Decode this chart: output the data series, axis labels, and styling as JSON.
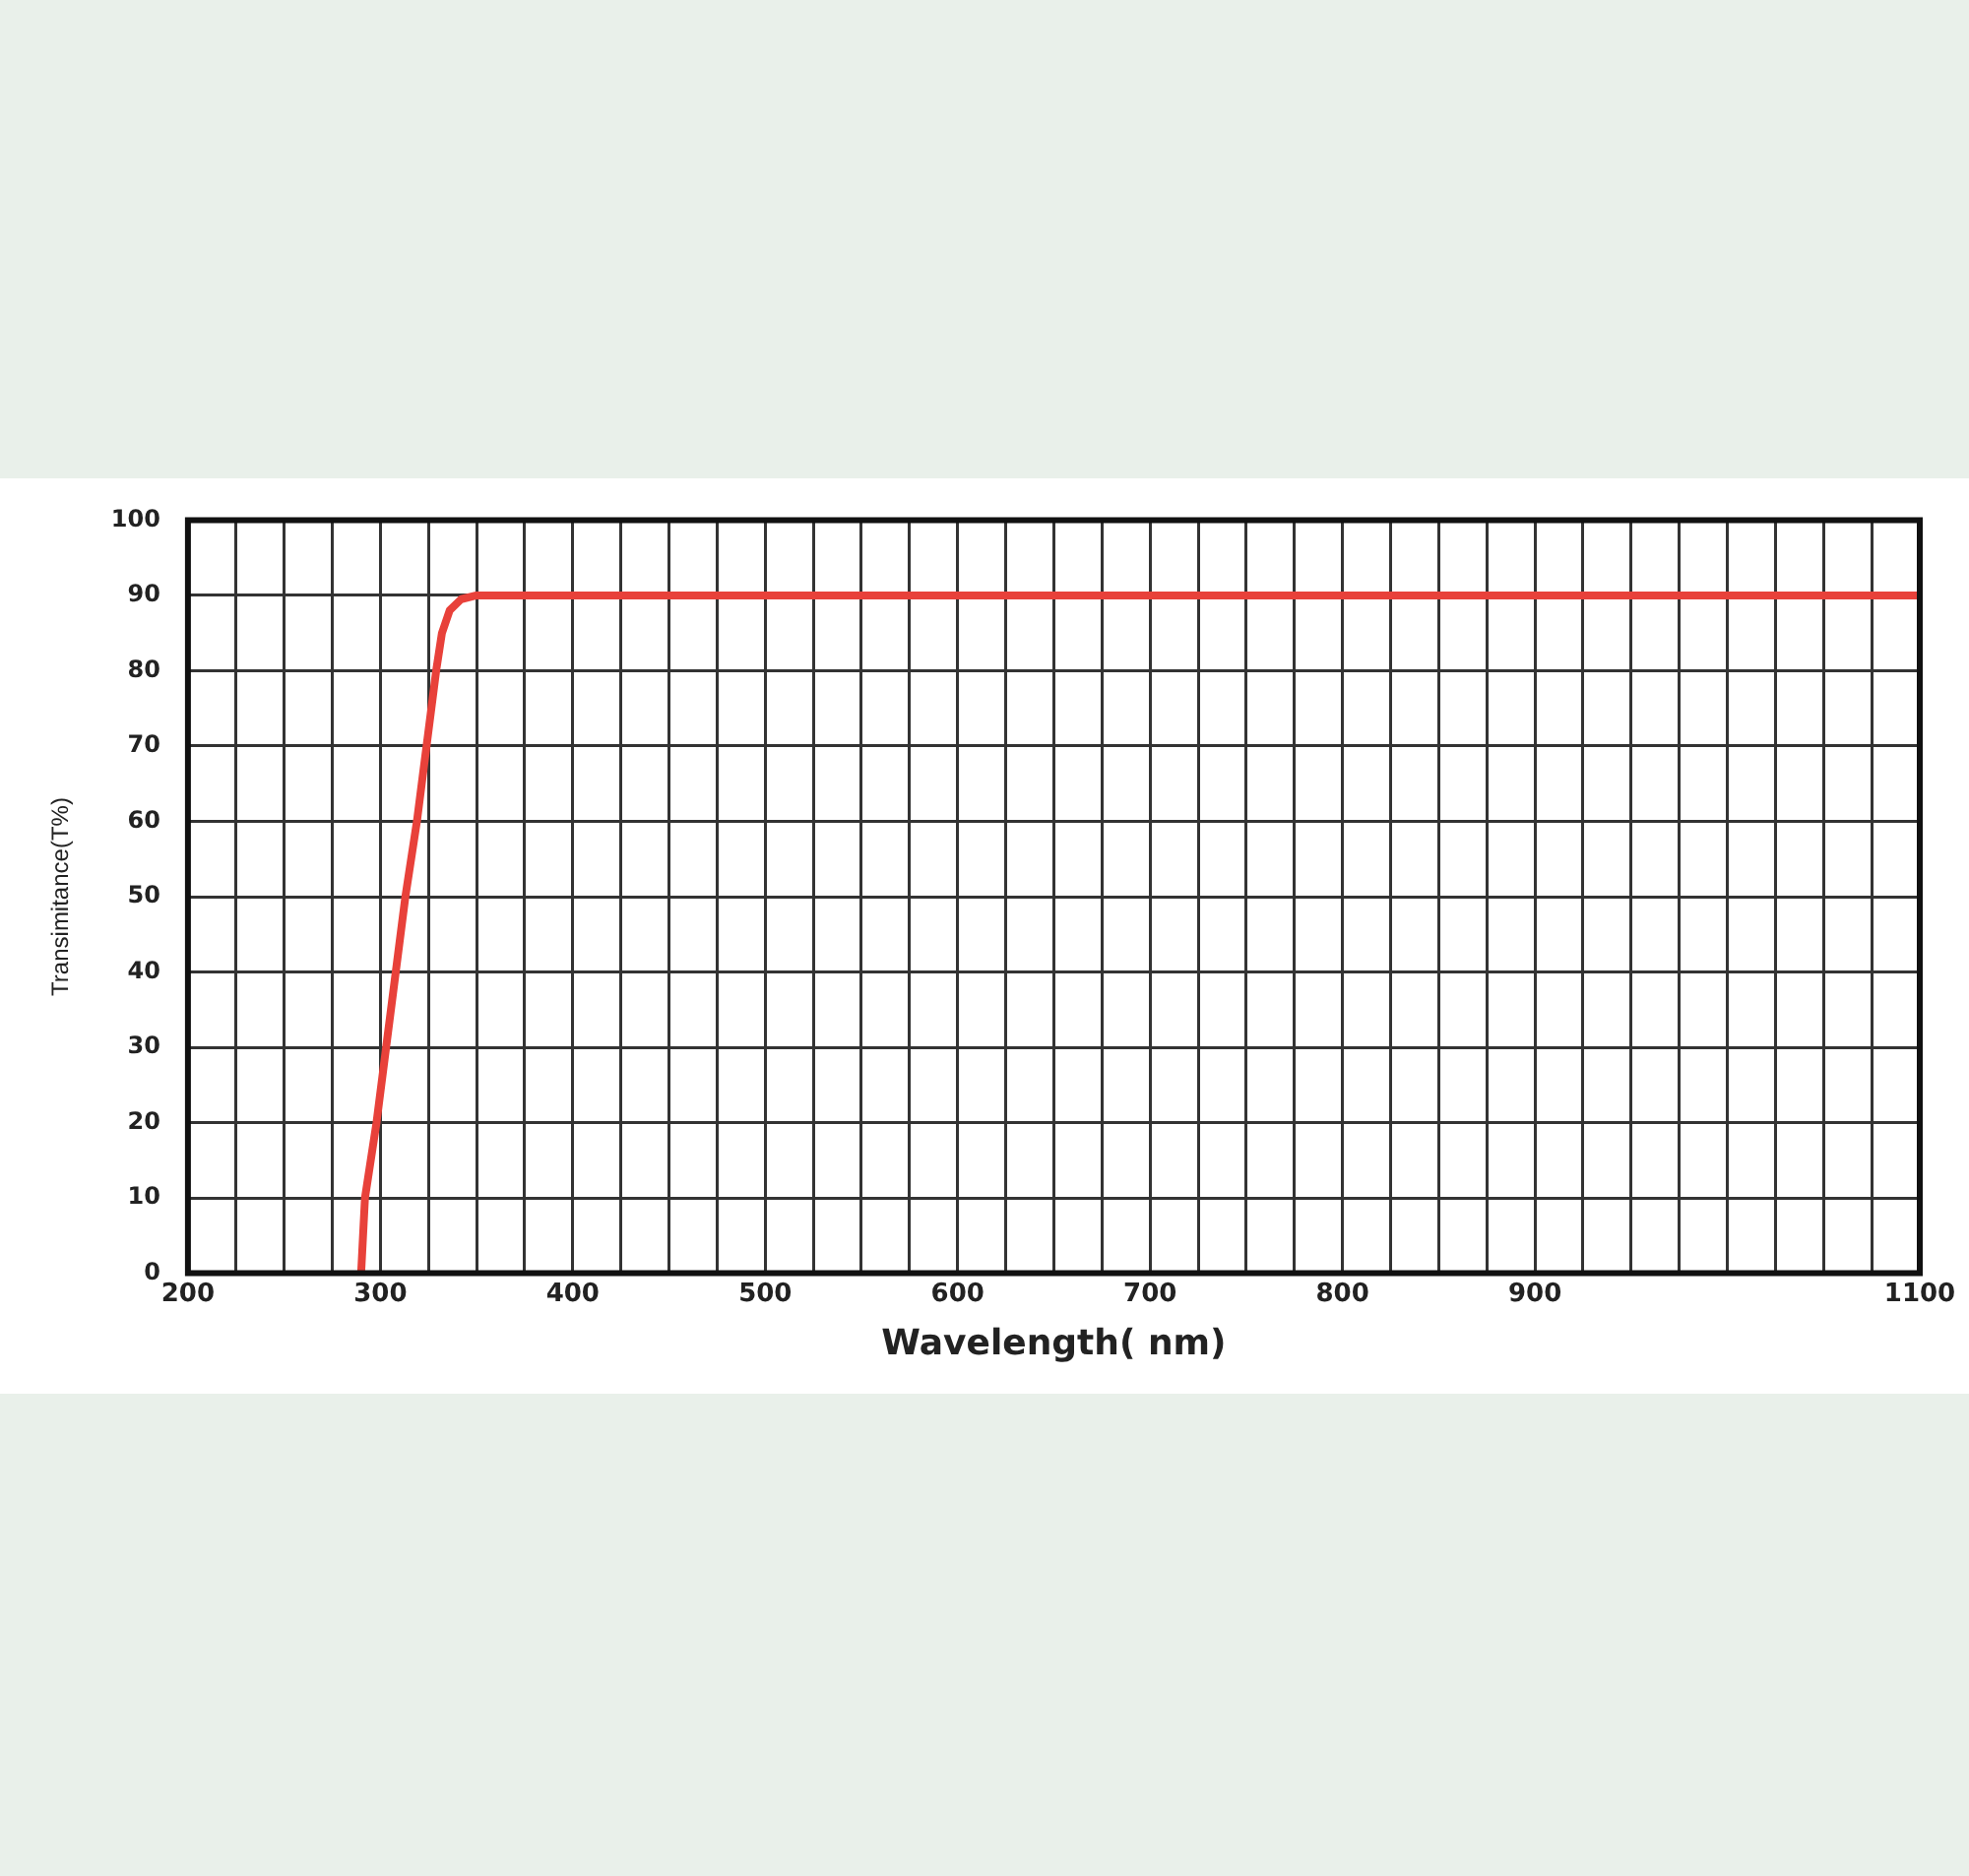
{
  "chart_data": {
    "type": "line",
    "xlabel": "Wavelength( nm)",
    "ylabel": "Transimitance(T%)",
    "xlim": [
      200,
      1100
    ],
    "ylim": [
      0,
      100
    ],
    "xticks": [
      200,
      {
        "value": 225,
        "label": null
      },
      {
        "value": 250,
        "label": null
      },
      {
        "value": 275,
        "label": null
      },
      300,
      {
        "value": 325,
        "label": null
      },
      {
        "value": 350,
        "label": null
      },
      {
        "value": 375,
        "label": null
      },
      400,
      {
        "value": 425,
        "label": null
      },
      {
        "value": 450,
        "label": null
      },
      {
        "value": 475,
        "label": null
      },
      500,
      {
        "value": 525,
        "label": null
      },
      {
        "value": 550,
        "label": null
      },
      {
        "value": 575,
        "label": null
      },
      600,
      {
        "value": 625,
        "label": null
      },
      {
        "value": 650,
        "label": null
      },
      {
        "value": 675,
        "label": null
      },
      700,
      {
        "value": 725,
        "label": null
      },
      {
        "value": 750,
        "label": null
      },
      {
        "value": 775,
        "label": null
      },
      800,
      {
        "value": 825,
        "label": null
      },
      {
        "value": 850,
        "label": null
      },
      {
        "value": 875,
        "label": null
      },
      900,
      {
        "value": 925,
        "label": null
      },
      {
        "value": 950,
        "label": null
      },
      {
        "value": 975,
        "label": null
      },
      {
        "value": 1000,
        "label": null
      },
      {
        "value": 1025,
        "label": null
      },
      {
        "value": 1050,
        "label": null
      },
      {
        "value": 1075,
        "label": null
      },
      1100
    ],
    "yticks": [
      0,
      10,
      20,
      30,
      40,
      50,
      60,
      70,
      80,
      90,
      100
    ],
    "grid": true,
    "legend": false,
    "marker": "none",
    "line_style": "solid",
    "series": [
      {
        "color": "#e8413a",
        "x": [
          290,
          292,
          298,
          303,
          308,
          313,
          319,
          324,
          329,
          332,
          336,
          342,
          350,
          360,
          1100
        ],
        "values": [
          0,
          10,
          20,
          30,
          40,
          50,
          60,
          70,
          80,
          85,
          88,
          89.5,
          90,
          90,
          90
        ]
      }
    ]
  }
}
